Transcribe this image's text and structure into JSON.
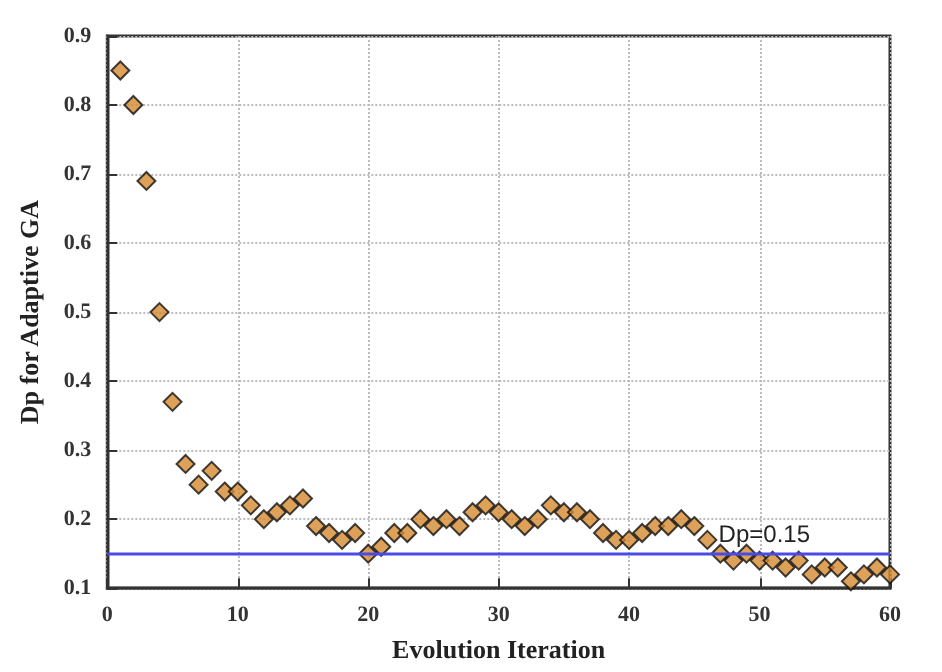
{
  "chart_data": {
    "type": "scatter",
    "xlabel": "Evolution Iteration",
    "ylabel": "Dp for Adaptive GA",
    "x": [
      1,
      2,
      3,
      4,
      5,
      6,
      7,
      8,
      9,
      10,
      11,
      12,
      13,
      14,
      15,
      16,
      17,
      18,
      19,
      20,
      21,
      22,
      23,
      24,
      25,
      26,
      27,
      28,
      29,
      30,
      31,
      32,
      33,
      34,
      35,
      36,
      37,
      38,
      39,
      40,
      41,
      42,
      43,
      44,
      45,
      46,
      47,
      48,
      49,
      50,
      51,
      52,
      53,
      54,
      55,
      56,
      57,
      58,
      59,
      60
    ],
    "series": [
      {
        "color": "#d4892f",
        "values": [
          0.85,
          0.8,
          0.69,
          0.5,
          0.37,
          0.28,
          0.25,
          0.27,
          0.24,
          0.24,
          0.22,
          0.2,
          0.21,
          0.22,
          0.23,
          0.19,
          0.18,
          0.17,
          0.18,
          0.15,
          0.16,
          0.18,
          0.18,
          0.2,
          0.19,
          0.2,
          0.19,
          0.21,
          0.22,
          0.21,
          0.2,
          0.19,
          0.2,
          0.22,
          0.21,
          0.21,
          0.2,
          0.18,
          0.17,
          0.17,
          0.18,
          0.19,
          0.19,
          0.2,
          0.19,
          0.17,
          0.15,
          0.14,
          0.15,
          0.14,
          0.14,
          0.13,
          0.14,
          0.12,
          0.13,
          0.13,
          0.11,
          0.12,
          0.13,
          0.12
        ]
      }
    ],
    "xlim": [
      0,
      60
    ],
    "xticks": [
      0,
      10,
      20,
      30,
      40,
      50,
      60
    ],
    "ylim": [
      0.1,
      0.9
    ],
    "yticks": [
      0.1,
      0.2,
      0.3,
      0.4,
      0.5,
      0.6,
      0.7,
      0.8,
      0.9
    ],
    "ref_lines": [
      {
        "axis": "y",
        "value": 0.15,
        "label": "Dp=0.15",
        "color": "#4a4ae6",
        "line_style": "solid"
      }
    ],
    "grid": true,
    "marker": "diamond"
  }
}
